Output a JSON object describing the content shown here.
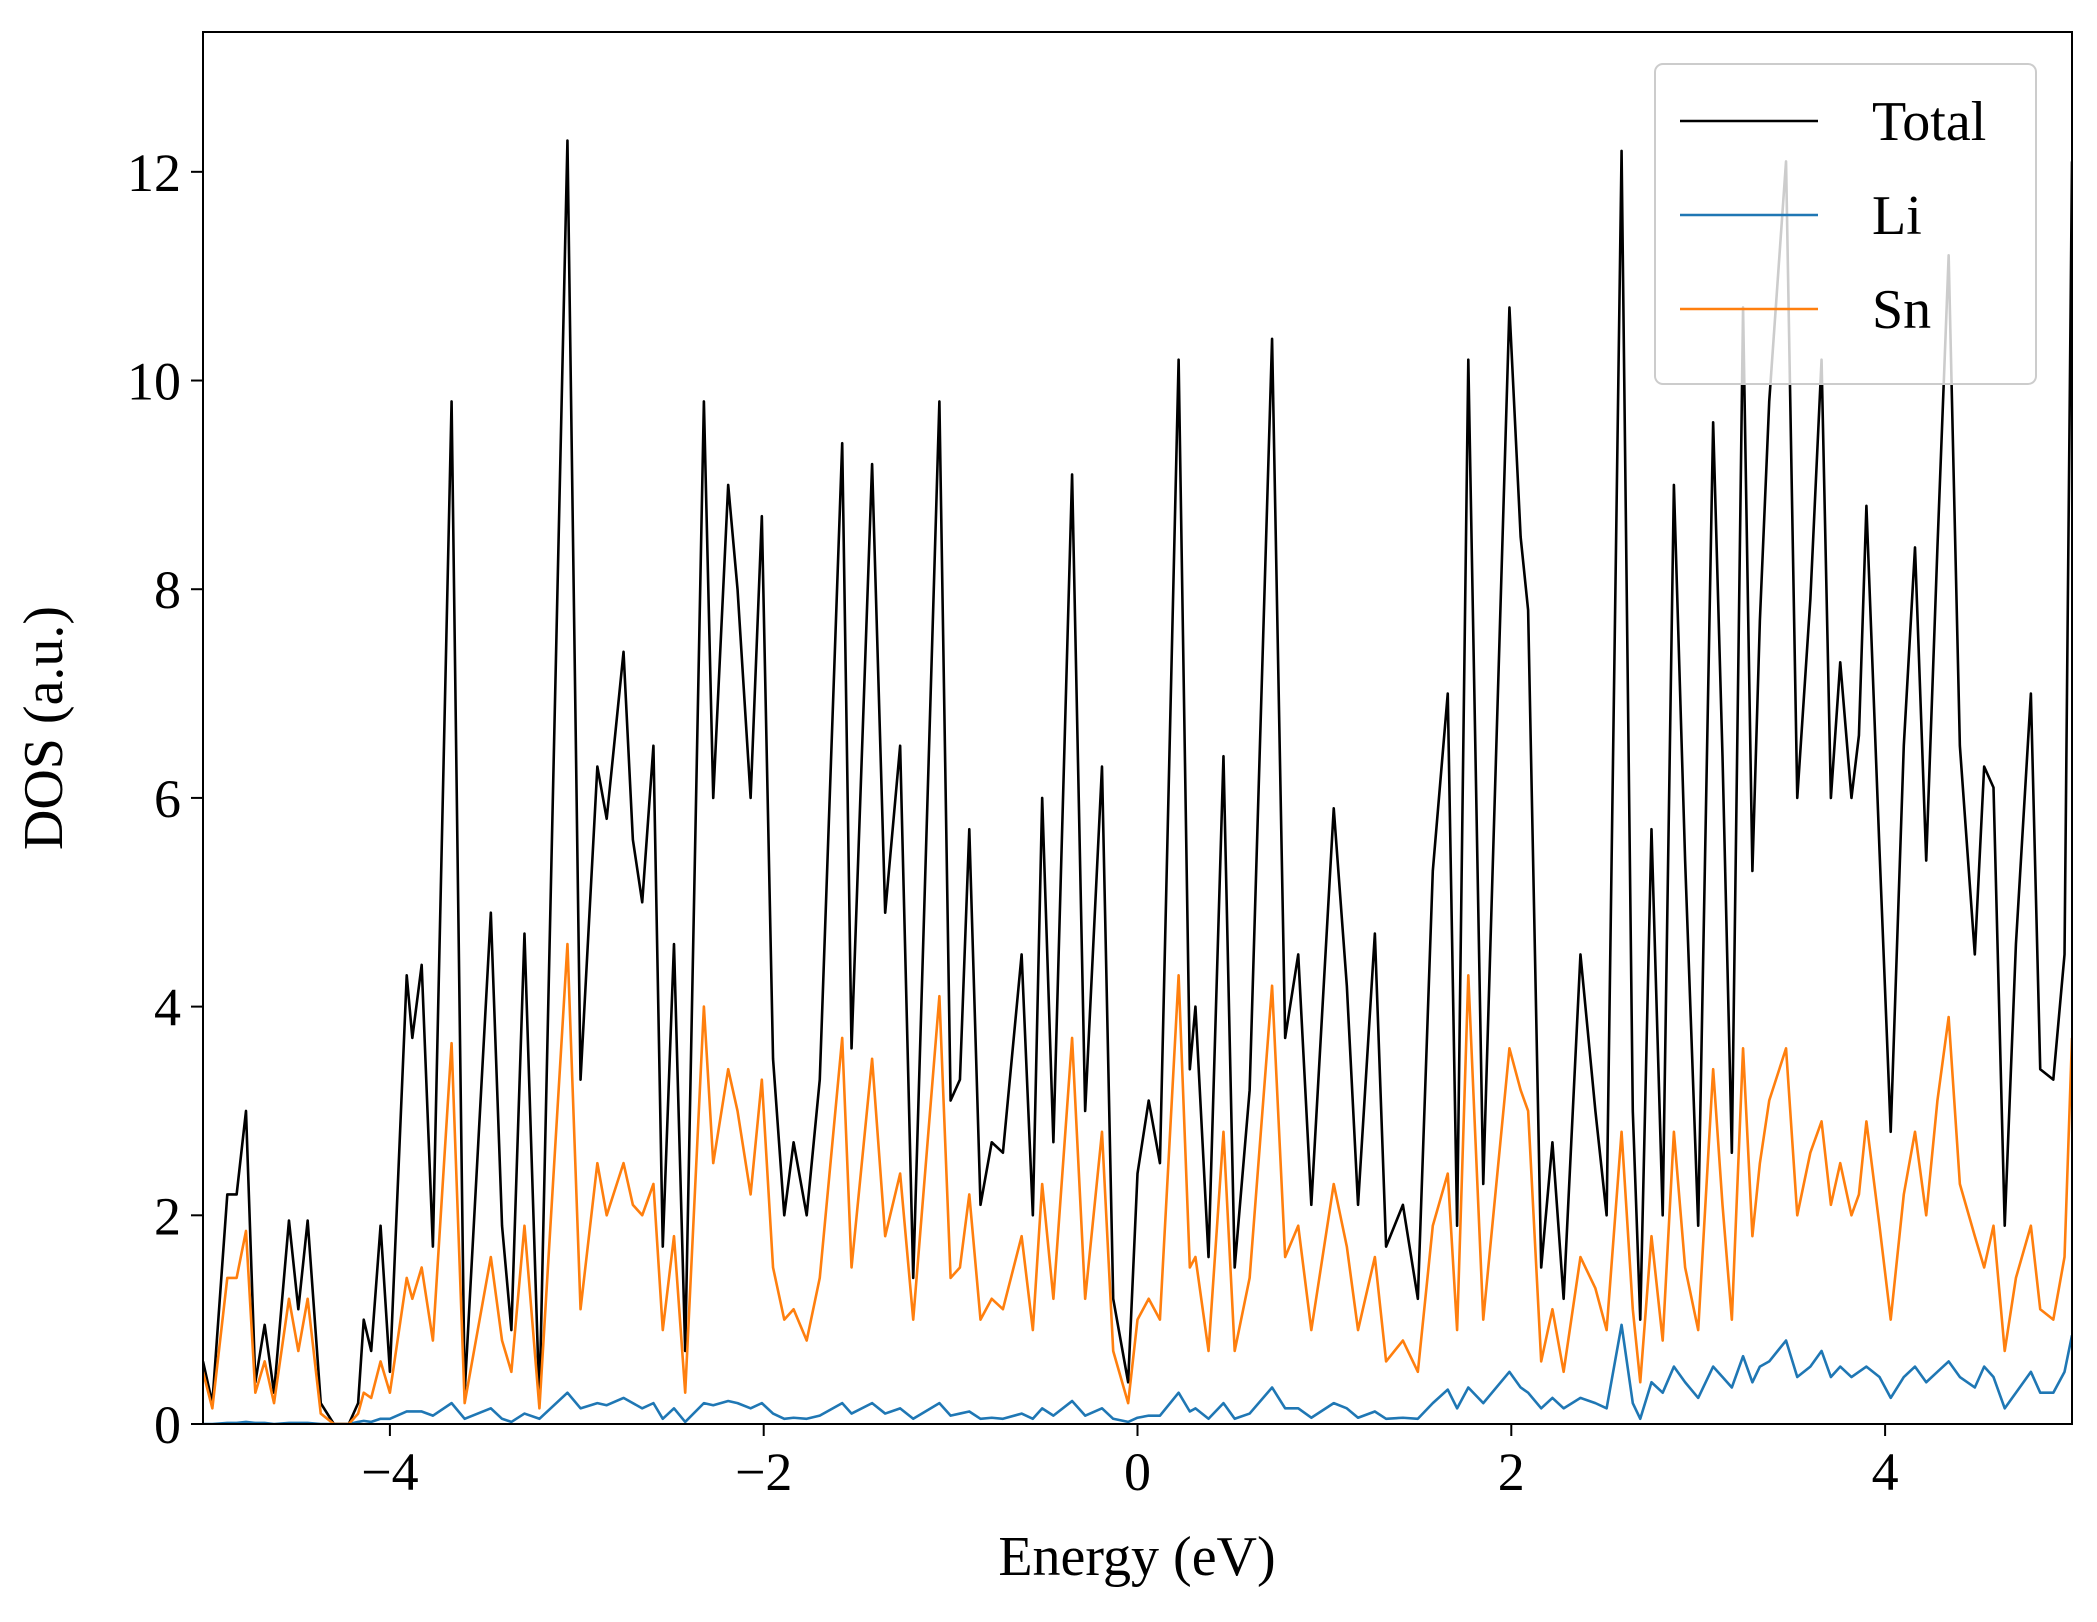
{
  "chart_data": {
    "type": "line",
    "xlabel": "Energy (eV)",
    "ylabel": "DOS (a.u.)",
    "xlim": [
      -5,
      5
    ],
    "ylim": [
      0,
      13.34
    ],
    "xticks": [
      {
        "value": -4,
        "label": "−4"
      },
      {
        "value": -2,
        "label": "−2"
      },
      0,
      2,
      4
    ],
    "yticks": [
      0,
      2,
      4,
      6,
      8,
      10,
      12
    ],
    "legend": "upper right",
    "x": [
      -5.0,
      -4.95,
      -4.87,
      -4.82,
      -4.77,
      -4.72,
      -4.67,
      -4.62,
      -4.54,
      -4.49,
      -4.44,
      -4.37,
      -4.3,
      -4.22,
      -4.17,
      -4.14,
      -4.1,
      -4.05,
      -4.0,
      -3.91,
      -3.88,
      -3.83,
      -3.77,
      -3.67,
      -3.6,
      -3.46,
      -3.4,
      -3.35,
      -3.28,
      -3.2,
      -3.05,
      -2.98,
      -2.89,
      -2.84,
      -2.75,
      -2.7,
      -2.65,
      -2.59,
      -2.54,
      -2.48,
      -2.42,
      -2.32,
      -2.27,
      -2.19,
      -2.14,
      -2.07,
      -2.01,
      -1.95,
      -1.89,
      -1.84,
      -1.77,
      -1.7,
      -1.58,
      -1.53,
      -1.42,
      -1.35,
      -1.27,
      -1.2,
      -1.06,
      -1.0,
      -0.95,
      -0.9,
      -0.84,
      -0.78,
      -0.72,
      -0.62,
      -0.56,
      -0.51,
      -0.45,
      -0.35,
      -0.28,
      -0.19,
      -0.13,
      -0.05,
      0.0,
      0.06,
      0.12,
      0.22,
      0.28,
      0.31,
      0.38,
      0.46,
      0.52,
      0.6,
      0.72,
      0.79,
      0.86,
      0.93,
      1.05,
      1.12,
      1.18,
      1.27,
      1.33,
      1.42,
      1.5,
      1.58,
      1.66,
      1.71,
      1.77,
      1.85,
      1.99,
      2.05,
      2.09,
      2.16,
      2.22,
      2.28,
      2.37,
      2.45,
      2.51,
      2.59,
      2.65,
      2.69,
      2.75,
      2.81,
      2.87,
      2.93,
      3.0,
      3.08,
      3.13,
      3.18,
      3.24,
      3.29,
      3.33,
      3.38,
      3.47,
      3.53,
      3.6,
      3.66,
      3.71,
      3.76,
      3.82,
      3.86,
      3.9,
      3.97,
      4.03,
      4.1,
      4.16,
      4.22,
      4.28,
      4.34,
      4.4,
      4.48,
      4.53,
      4.58,
      4.64,
      4.7,
      4.78,
      4.83,
      4.9,
      4.96,
      5.0
    ],
    "series": [
      {
        "name": "Total",
        "color": "#000000",
        "values": [
          0.6,
          0.2,
          2.2,
          2.2,
          3.0,
          0.4,
          0.95,
          0.3,
          1.95,
          1.1,
          1.95,
          0.2,
          0.0,
          0.0,
          0.2,
          1.0,
          0.7,
          1.9,
          0.5,
          4.3,
          3.7,
          4.4,
          1.7,
          9.8,
          0.3,
          4.9,
          1.9,
          0.9,
          4.7,
          0.2,
          12.3,
          3.3,
          6.3,
          5.8,
          7.4,
          5.6,
          5.0,
          6.5,
          1.7,
          4.6,
          0.7,
          9.8,
          6.0,
          9.0,
          8.0,
          6.0,
          8.7,
          3.5,
          2.0,
          2.7,
          2.0,
          3.3,
          9.4,
          3.6,
          9.2,
          4.9,
          6.5,
          1.4,
          9.8,
          3.1,
          3.3,
          5.7,
          2.1,
          2.7,
          2.6,
          4.5,
          2.0,
          6.0,
          2.7,
          9.1,
          3.0,
          6.3,
          1.2,
          0.4,
          2.4,
          3.1,
          2.5,
          10.2,
          3.4,
          4.0,
          1.6,
          6.4,
          1.5,
          3.2,
          10.4,
          3.7,
          4.5,
          2.1,
          5.9,
          4.2,
          2.1,
          4.7,
          1.7,
          2.1,
          1.2,
          5.3,
          7.0,
          1.9,
          10.2,
          2.3,
          10.7,
          8.5,
          7.8,
          1.5,
          2.7,
          1.2,
          4.5,
          3.0,
          2.0,
          12.2,
          3.0,
          1.0,
          5.7,
          2.0,
          9.0,
          5.4,
          1.9,
          9.6,
          6.4,
          2.6,
          10.7,
          5.3,
          7.7,
          9.8,
          12.1,
          6.0,
          7.9,
          10.2,
          6.0,
          7.3,
          6.0,
          6.6,
          8.8,
          5.5,
          2.8,
          6.5,
          8.4,
          5.4,
          8.4,
          11.2,
          6.5,
          4.5,
          6.3,
          6.1,
          1.9,
          4.6,
          7.0,
          3.4,
          3.3,
          4.5,
          12.1
        ]
      },
      {
        "name": "Li",
        "color": "#1f77b4",
        "values": [
          0.0,
          0.0,
          0.01,
          0.01,
          0.02,
          0.01,
          0.01,
          0.0,
          0.01,
          0.01,
          0.01,
          0.0,
          0.0,
          0.0,
          0.02,
          0.03,
          0.02,
          0.05,
          0.05,
          0.12,
          0.12,
          0.12,
          0.08,
          0.2,
          0.05,
          0.15,
          0.05,
          0.02,
          0.1,
          0.05,
          0.3,
          0.15,
          0.2,
          0.18,
          0.25,
          0.2,
          0.15,
          0.2,
          0.05,
          0.15,
          0.02,
          0.2,
          0.18,
          0.22,
          0.2,
          0.15,
          0.2,
          0.1,
          0.05,
          0.06,
          0.05,
          0.08,
          0.2,
          0.1,
          0.2,
          0.1,
          0.15,
          0.05,
          0.2,
          0.08,
          0.1,
          0.12,
          0.05,
          0.06,
          0.05,
          0.1,
          0.05,
          0.15,
          0.08,
          0.22,
          0.08,
          0.15,
          0.05,
          0.02,
          0.06,
          0.08,
          0.08,
          0.3,
          0.12,
          0.15,
          0.05,
          0.2,
          0.05,
          0.1,
          0.35,
          0.15,
          0.15,
          0.06,
          0.2,
          0.15,
          0.06,
          0.12,
          0.05,
          0.06,
          0.05,
          0.2,
          0.33,
          0.15,
          0.35,
          0.2,
          0.5,
          0.35,
          0.3,
          0.15,
          0.25,
          0.15,
          0.25,
          0.2,
          0.15,
          0.95,
          0.2,
          0.05,
          0.4,
          0.3,
          0.55,
          0.4,
          0.25,
          0.55,
          0.45,
          0.35,
          0.65,
          0.4,
          0.55,
          0.6,
          0.8,
          0.45,
          0.55,
          0.7,
          0.45,
          0.55,
          0.45,
          0.5,
          0.55,
          0.45,
          0.25,
          0.45,
          0.55,
          0.4,
          0.5,
          0.6,
          0.45,
          0.35,
          0.55,
          0.45,
          0.15,
          0.3,
          0.5,
          0.3,
          0.3,
          0.5,
          0.85
        ]
      },
      {
        "name": "Sn",
        "color": "#ff7f0e",
        "values": [
          0.5,
          0.15,
          1.4,
          1.4,
          1.85,
          0.3,
          0.6,
          0.2,
          1.2,
          0.7,
          1.2,
          0.1,
          0.0,
          0.0,
          0.1,
          0.3,
          0.25,
          0.6,
          0.3,
          1.4,
          1.2,
          1.5,
          0.8,
          3.65,
          0.2,
          1.6,
          0.8,
          0.5,
          1.9,
          0.15,
          4.6,
          1.1,
          2.5,
          2.0,
          2.5,
          2.1,
          2.0,
          2.3,
          0.9,
          1.8,
          0.3,
          4.0,
          2.5,
          3.4,
          3.0,
          2.2,
          3.3,
          1.5,
          1.0,
          1.1,
          0.8,
          1.4,
          3.7,
          1.5,
          3.5,
          1.8,
          2.4,
          1.0,
          4.1,
          1.4,
          1.5,
          2.2,
          1.0,
          1.2,
          1.1,
          1.8,
          0.9,
          2.3,
          1.2,
          3.7,
          1.2,
          2.8,
          0.7,
          0.2,
          1.0,
          1.2,
          1.0,
          4.3,
          1.5,
          1.6,
          0.7,
          2.8,
          0.7,
          1.4,
          4.2,
          1.6,
          1.9,
          0.9,
          2.3,
          1.7,
          0.9,
          1.6,
          0.6,
          0.8,
          0.5,
          1.9,
          2.4,
          0.9,
          4.3,
          1.0,
          3.6,
          3.2,
          3.0,
          0.6,
          1.1,
          0.5,
          1.6,
          1.3,
          0.9,
          2.8,
          1.1,
          0.4,
          1.8,
          0.8,
          2.8,
          1.5,
          0.9,
          3.4,
          2.1,
          1.0,
          3.6,
          1.8,
          2.5,
          3.1,
          3.6,
          2.0,
          2.6,
          2.9,
          2.1,
          2.5,
          2.0,
          2.2,
          2.9,
          1.9,
          1.0,
          2.2,
          2.8,
          2.0,
          3.1,
          3.9,
          2.3,
          1.8,
          1.5,
          1.9,
          0.7,
          1.4,
          1.9,
          1.1,
          1.0,
          1.6,
          3.7
        ]
      }
    ]
  }
}
